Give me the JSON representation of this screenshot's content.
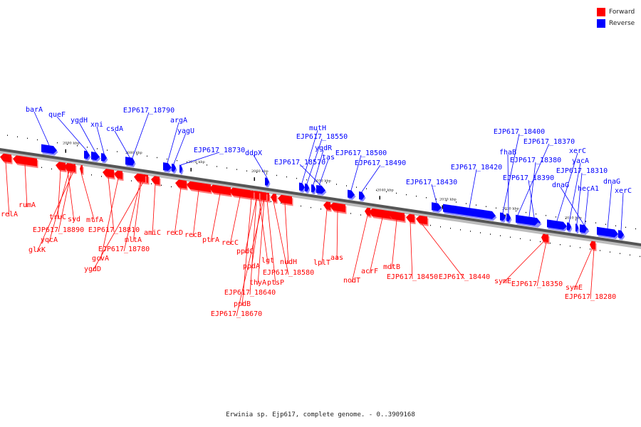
{
  "legend": {
    "forward_label": "Forward",
    "reverse_label": "Reverse",
    "forward_color": "#ff0000",
    "reverse_color": "#0000ff"
  },
  "caption": "Erwinia sp. Ejp617, complete genome. - 0..3909168",
  "scale_labels": [
    "2090 kbp",
    "2080 kbp",
    "2070 kbp",
    "2060 kbp",
    "2050 kbp",
    "2040 kbp",
    "2030 kbp",
    "2020 kbp",
    "2010 kbp"
  ],
  "reverse_genes": [
    "barA",
    "queF",
    "ygdH",
    "xni",
    "csdA",
    "EJP617_18790",
    "argA",
    "yagU",
    "EJP617_18730",
    "ddpX",
    "mutH",
    "EJP617_18550",
    "ygdR",
    "tas",
    "EJP617_18570",
    "EJP617_18500",
    "EJP617_18490",
    "EJP617_18430",
    "EJP617_18420",
    "EJP617_18400",
    "fhaB",
    "EJP617_18370",
    "EJP617_18380",
    "EJP617_18390",
    "xerC",
    "yacA",
    "EJP617_18310",
    "dnaG",
    "hecA1",
    "dnaG",
    "xerC"
  ],
  "forward_genes": [
    "relA",
    "rumA",
    "truC",
    "syd",
    "yqcA",
    "EJP617_18890",
    "glxK",
    "mtfA",
    "EJP617_18810",
    "gcvA",
    "mltA",
    "EJP617_18780",
    "ygdD",
    "amiC",
    "recD",
    "recB",
    "ptrA",
    "recC",
    "ppdC",
    "lgt",
    "ppdA",
    "nudH",
    "thyA",
    "ptsP",
    "EJP617_18580",
    "EJP617_18640",
    "ppdB",
    "EJP617_18670",
    "lplT",
    "aas",
    "nodT",
    "acrF",
    "mdtB",
    "EJP617_18450",
    "EJP617_18440",
    "symE",
    "EJP617_18350",
    "symE",
    "EJP617_18280"
  ]
}
